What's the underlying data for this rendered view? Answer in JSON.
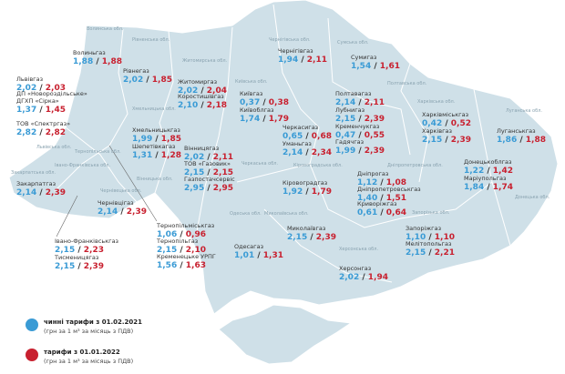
{
  "colors": {
    "current": "#3a9bd5",
    "new": "#c8202f",
    "map_fill": "#cfe0e8",
    "border": "#ffffff"
  },
  "separator": "/",
  "legend": [
    {
      "title": "чинні тарифи з 01.02.2021",
      "subtitle": "(грн за 1 м³ за місяць з ПДВ)",
      "color": "#3a9bd5"
    },
    {
      "title": "тарифи з 01.01.2022",
      "subtitle": "(грн за 1 м³ за місяць з ПДВ)",
      "color": "#c8202f"
    }
  ],
  "regions": [
    "Волинська обл.",
    "Рівненська обл.",
    "Житомирська обл.",
    "Київська обл.",
    "Чернігівська обл.",
    "Сумська обл.",
    "Харківська обл.",
    "Луганська обл.",
    "Донецька обл.",
    "Запорізька обл.",
    "Херсонська обл.",
    "Миколаївська обл.",
    "Одеська обл.",
    "Кіровоградська обл.",
    "Черкаська обл.",
    "Вінницька обл.",
    "Хмельницька обл.",
    "Тернопільська обл.",
    "Львівська обл.",
    "Івано-Франківська обл.",
    "Закарпатська обл.",
    "Чернівецька обл.",
    "Полтавська обл.",
    "Дніпропетровська обл."
  ],
  "companies": [
    {
      "name": "Волиньгаз",
      "current": "1,88",
      "new": "1,88"
    },
    {
      "name": "Рівнегаз",
      "current": "2,02",
      "new": "1,85"
    },
    {
      "name": "Львівгаз",
      "current": "2,02",
      "new": "2,03"
    },
    {
      "name": "ДП «Новороздільське» ДГХП «Сірка»",
      "current": "1,37",
      "new": "1,45"
    },
    {
      "name": "ТОВ «Спектргаз»",
      "current": "2,82",
      "new": "2,82"
    },
    {
      "name": "Житомиргаз",
      "current": "2,02",
      "new": "2,04"
    },
    {
      "name": "Коростишівгаз",
      "current": "2,10",
      "new": "2,18"
    },
    {
      "name": "Чернігівгаз",
      "current": "1,94",
      "new": "2,11"
    },
    {
      "name": "Сумигаз",
      "current": "1,54",
      "new": "1,61"
    },
    {
      "name": "Київгаз",
      "current": "0,37",
      "new": "0,38"
    },
    {
      "name": "Київоблгаз",
      "current": "1,74",
      "new": "1,79"
    },
    {
      "name": "Полтавагаз",
      "current": "2,14",
      "new": "2,11"
    },
    {
      "name": "Лубнигаз",
      "current": "2,15",
      "new": "2,39"
    },
    {
      "name": "Кременчукгаз",
      "current": "0,47",
      "new": "0,55"
    },
    {
      "name": "Гадячгаз",
      "current": "1,99",
      "new": "2,39"
    },
    {
      "name": "Харківміськгаз",
      "current": "0,42",
      "new": "0,52"
    },
    {
      "name": "Харківгаз",
      "current": "2,15",
      "new": "2,39"
    },
    {
      "name": "Луганськгаз",
      "current": "1,86",
      "new": "1,88"
    },
    {
      "name": "Черкасигаз",
      "current": "0,65",
      "new": "0,68"
    },
    {
      "name": "Уманьгаз",
      "current": "2,14",
      "new": "2,34"
    },
    {
      "name": "Хмельницькгаз",
      "current": "1,99",
      "new": "1,85"
    },
    {
      "name": "Шепетівкагаз",
      "current": "1,31",
      "new": "1,28"
    },
    {
      "name": "Вінницягаз",
      "current": "2,02",
      "new": "2,11"
    },
    {
      "name": "ТОВ «Газовик»",
      "current": "2,15",
      "new": "2,15"
    },
    {
      "name": "Газпостачсервіс",
      "current": "2,95",
      "new": "2,95"
    },
    {
      "name": "Закарпатгаз",
      "current": "2,14",
      "new": "2,39"
    },
    {
      "name": "Чернівцігаз",
      "current": "2,14",
      "new": "2,39"
    },
    {
      "name": "Кіровоградгаз",
      "current": "1,92",
      "new": "1,79"
    },
    {
      "name": "Дніпрогаз",
      "current": "1,12",
      "new": "1,08"
    },
    {
      "name": "Дніпропетровськгаз",
      "current": "1,40",
      "new": "1,51"
    },
    {
      "name": "Криворіжгаз",
      "current": "0,61",
      "new": "0,64"
    },
    {
      "name": "Донецькоблгаз",
      "current": "1,22",
      "new": "1,42"
    },
    {
      "name": "Маріупольгаз",
      "current": "1,84",
      "new": "1,74"
    },
    {
      "name": "Запоріжгаз",
      "current": "1,10",
      "new": "1,10"
    },
    {
      "name": "Мелітопольгаз",
      "current": "2,15",
      "new": "2,21"
    },
    {
      "name": "Миколаївгаз",
      "current": "2,15",
      "new": "2,39"
    },
    {
      "name": "Одесагаз",
      "current": "1,01",
      "new": "1,31"
    },
    {
      "name": "Херсонгаз",
      "current": "2,02",
      "new": "1,94"
    },
    {
      "name": "Тернопільміськгаз",
      "current": "1,06",
      "new": "0,96"
    },
    {
      "name": "Тернопільгаз",
      "current": "2,15",
      "new": "2,10"
    },
    {
      "name": "Кременецьке УРПГ",
      "current": "1,56",
      "new": "1,63"
    },
    {
      "name": "Івано-Франківськгаз",
      "current": "2,15",
      "new": "2,23"
    },
    {
      "name": "Тисменицягаз",
      "current": "2,15",
      "new": "2,39"
    }
  ]
}
